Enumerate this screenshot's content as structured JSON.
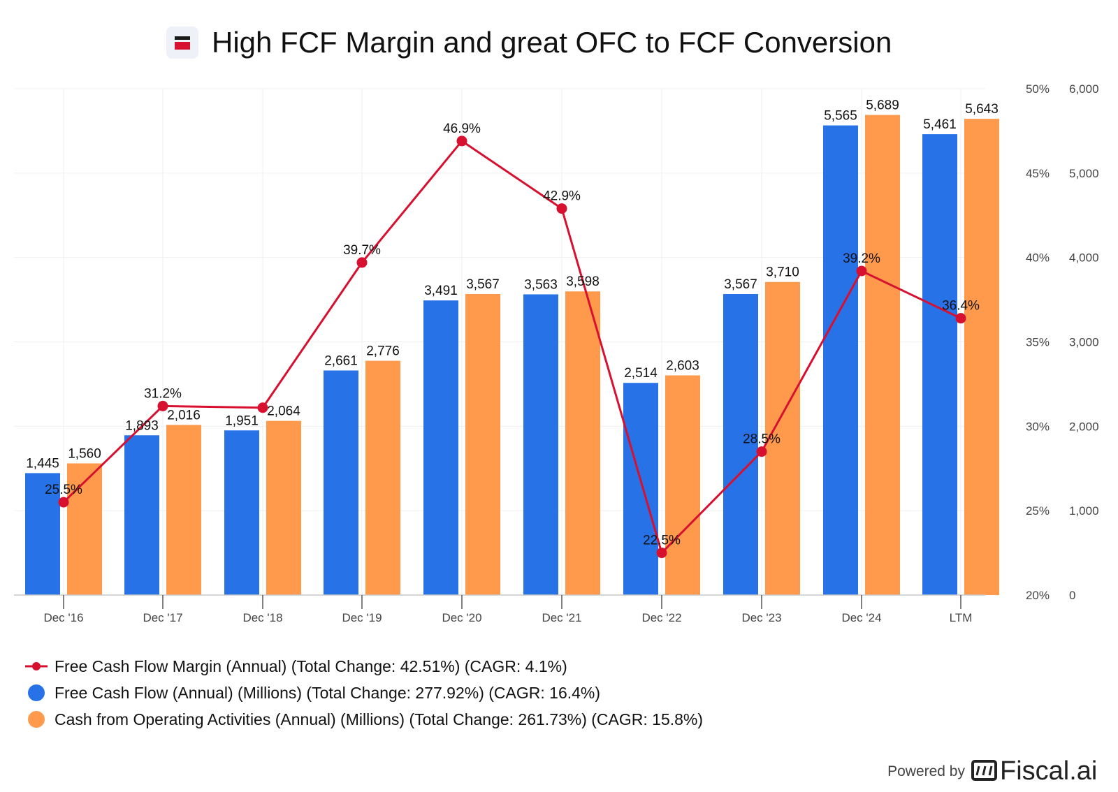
{
  "title": "High FCF Margin and great OFC to FCF Conversion",
  "logo_icon": "flag-icon",
  "colors": {
    "fcf": "#2872E8",
    "ocf": "#FF9A4D",
    "margin": "#D7102F",
    "grid": "#EFEFEF",
    "axis": "#C8C8C8"
  },
  "chart_data": {
    "type": "bar",
    "title": "High FCF Margin and great OFC to FCF Conversion",
    "categories": [
      "Dec '16",
      "Dec '17",
      "Dec '18",
      "Dec '19",
      "Dec '20",
      "Dec '21",
      "Dec '22",
      "Dec '23",
      "Dec '24",
      "LTM"
    ],
    "series": [
      {
        "name": "Free Cash Flow (Annual) (Millions)",
        "type": "bar",
        "axis": "right-outer",
        "values": [
          1445,
          1893,
          1951,
          2661,
          3491,
          3563,
          2514,
          3567,
          5565,
          5461
        ],
        "labels": [
          "1,445",
          "1,893",
          "1,951",
          "2,661",
          "3,491",
          "3,563",
          "2,514",
          "3,567",
          "5,565",
          "5,461"
        ]
      },
      {
        "name": "Cash from Operating Activities (Annual) (Millions)",
        "type": "bar",
        "axis": "right-outer",
        "values": [
          1560,
          2016,
          2064,
          2776,
          3567,
          3598,
          2603,
          3710,
          5689,
          5643
        ],
        "labels": [
          "1,560",
          "2,016",
          "2,064",
          "2,776",
          "3,567",
          "3,598",
          "2,603",
          "3,710",
          "5,689",
          "5,643"
        ]
      },
      {
        "name": "Free Cash Flow Margin (Annual)",
        "type": "line",
        "axis": "right-inner",
        "values": [
          25.5,
          31.2,
          31.1,
          39.7,
          46.9,
          42.9,
          22.5,
          28.5,
          39.2,
          36.4
        ],
        "labels": [
          "25.5%",
          "31.2%",
          "",
          "39.7%",
          "46.9%",
          "42.9%",
          "22.5%",
          "28.5%",
          "39.2%",
          "36.4%"
        ]
      }
    ],
    "y_millions": {
      "range": [
        0,
        6000
      ],
      "ticks": [
        "0",
        "1,000",
        "2,000",
        "3,000",
        "4,000",
        "5,000",
        "6,000"
      ]
    },
    "y_percent": {
      "range": [
        20,
        50
      ],
      "ticks": [
        "20%",
        "25%",
        "30%",
        "35%",
        "40%",
        "45%",
        "50%"
      ]
    },
    "grid": true,
    "legend_position": "bottom-left"
  },
  "legend": [
    {
      "label": "Free Cash Flow Margin (Annual) (Total Change: 42.51%) (CAGR: 4.1%)",
      "marker": "line-dot"
    },
    {
      "label": "Free Cash Flow (Annual) (Millions) (Total Change: 277.92%) (CAGR: 16.4%)",
      "marker": "dot"
    },
    {
      "label": "Cash from Operating Activities (Annual) (Millions) (Total Change: 261.73%) (CAGR: 15.8%)",
      "marker": "dot"
    }
  ],
  "footer": {
    "powered_by": "Powered by",
    "brand": "Fiscal.ai",
    "brand_icon": "fiscal-logo-icon"
  }
}
